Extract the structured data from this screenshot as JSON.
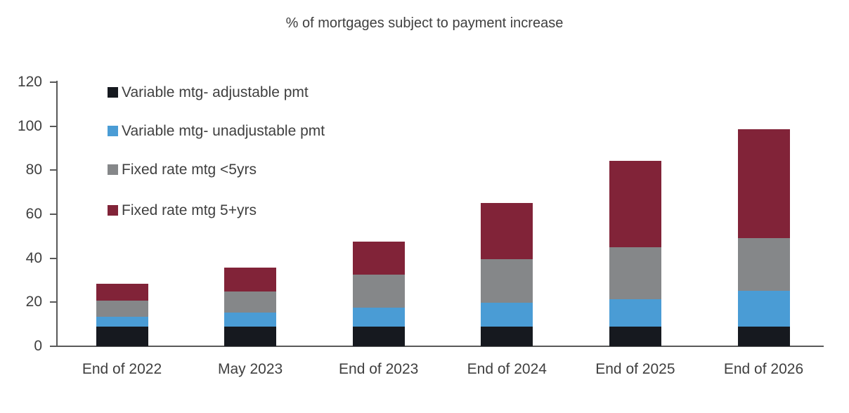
{
  "chart_data": {
    "type": "bar",
    "stacked": true,
    "title": "% of mortgages subject to payment increase",
    "categories": [
      "End of 2022",
      "May 2023",
      "End of 2023",
      "End of 2024",
      "End of 2025",
      "End of 2026"
    ],
    "series": [
      {
        "name": "Variable mtg- adjustable pmt",
        "color": "#16191f",
        "values": [
          8.8,
          8.8,
          8.8,
          8.8,
          8.8,
          8.8
        ]
      },
      {
        "name": "Variable mtg- unadjustable pmt",
        "color": "#4a9cd5",
        "values": [
          4.7,
          6.5,
          8.7,
          11.0,
          12.5,
          16.5
        ]
      },
      {
        "name": "Fixed rate mtg <5yrs",
        "color": "#858789",
        "values": [
          7.2,
          9.5,
          15.1,
          19.7,
          23.7,
          23.8
        ]
      },
      {
        "name": "Fixed rate mtg 5+yrs",
        "color": "#812338",
        "values": [
          7.8,
          11.0,
          14.9,
          25.5,
          39.2,
          49.4
        ]
      }
    ],
    "totals": [
      28.5,
      35.8,
      47.5,
      65.0,
      84.2,
      98.5
    ],
    "xlabel": "",
    "ylabel": "",
    "ylim": [
      0,
      120
    ],
    "yticks": [
      0,
      20,
      40,
      60,
      80,
      100,
      120
    ],
    "grid": false,
    "legend_position": "upper-left-inside",
    "axis_color": "#595959",
    "text_color": "#3f3f3f",
    "background_color": "#ffffff"
  }
}
